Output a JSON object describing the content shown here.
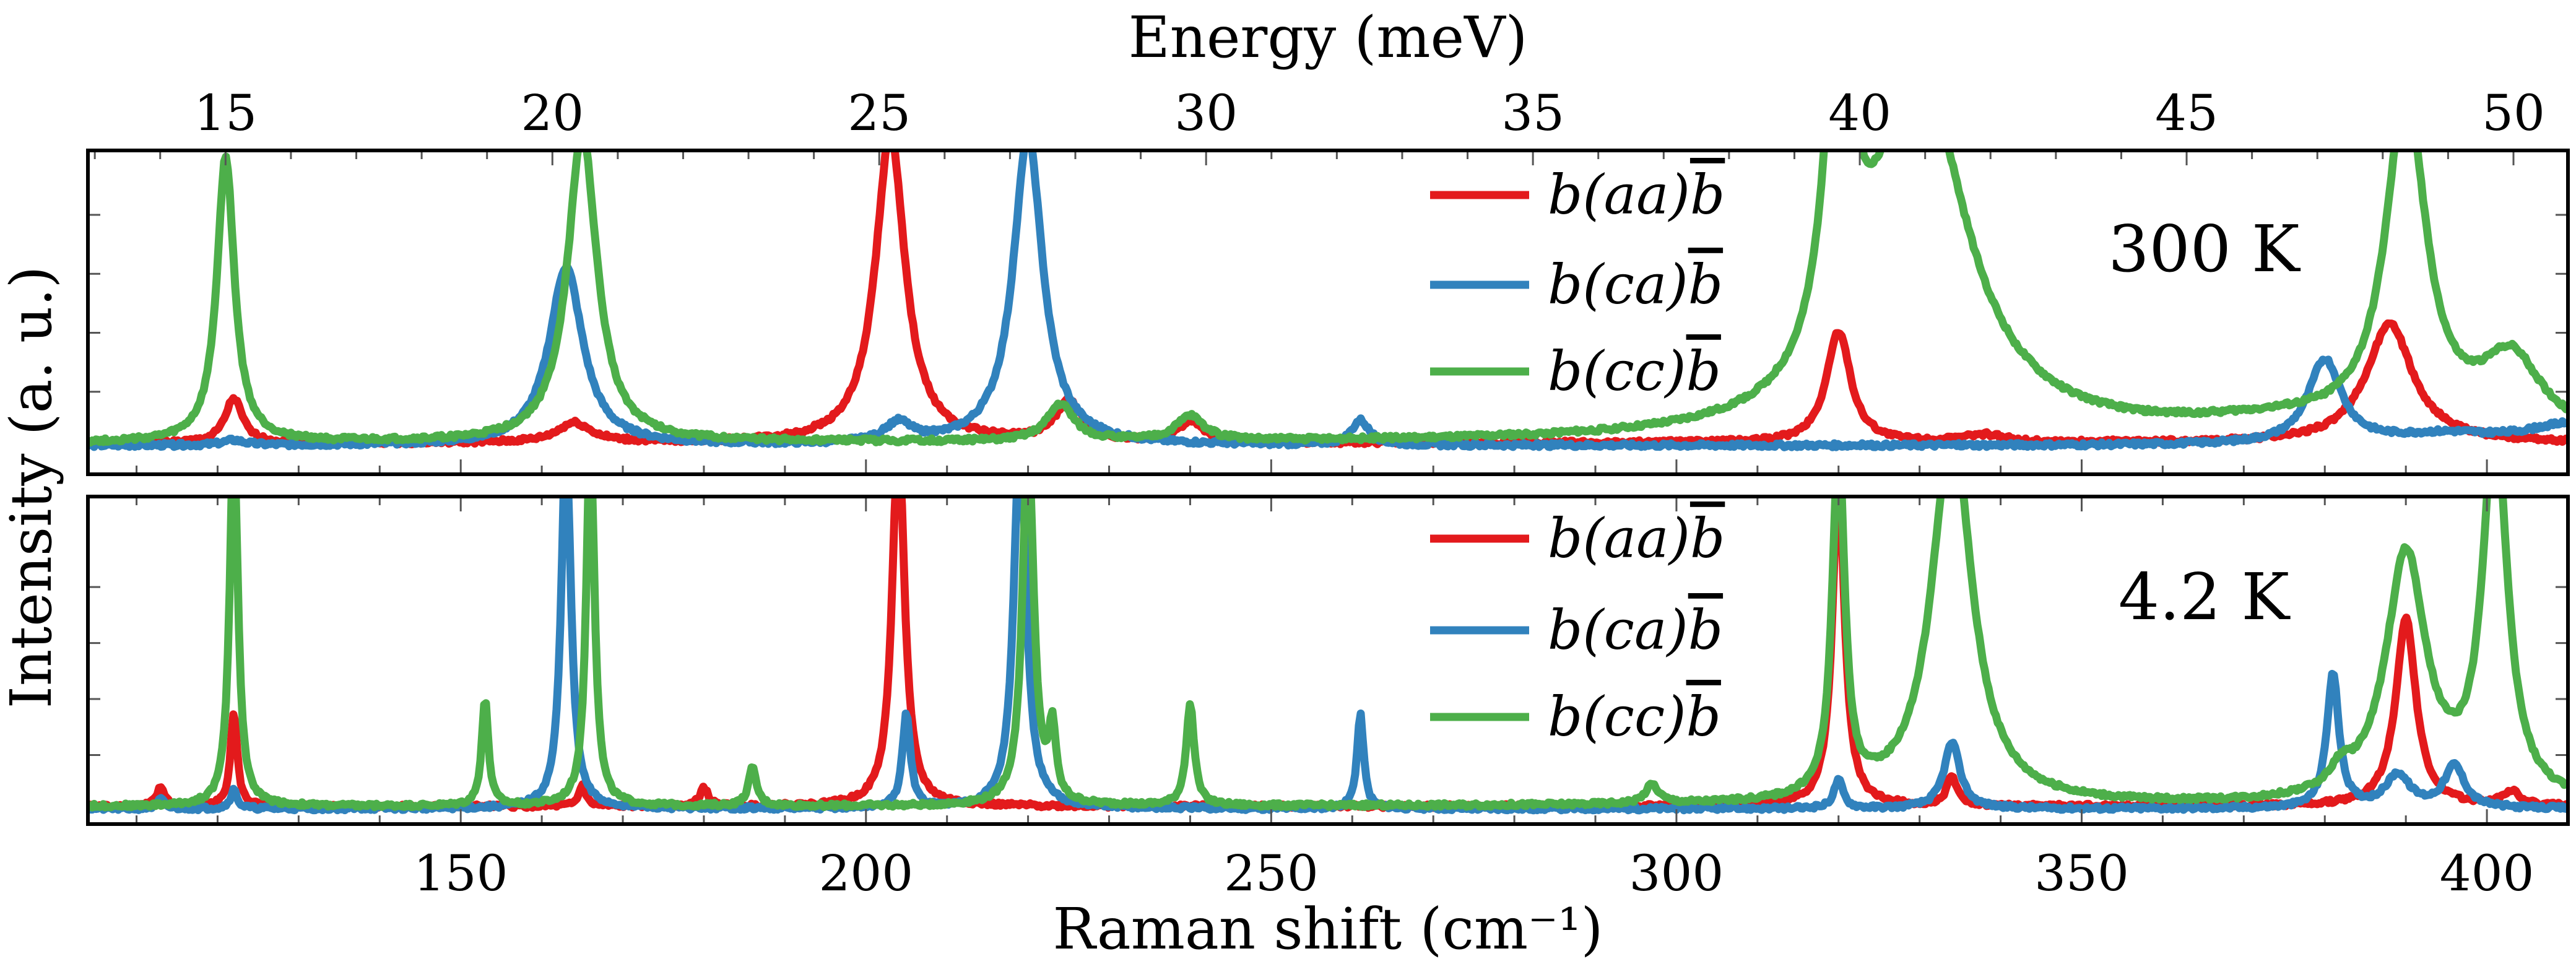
{
  "chart_data": {
    "type": "line",
    "title": "",
    "xlabel": "Raman shift (cm⁻¹)",
    "ylabel": "Intensity (a. u.)",
    "top_xlabel": "Energy (meV)",
    "xlim": [
      104,
      410
    ],
    "energy_ticks": [
      "15",
      "20",
      "25",
      "30",
      "35",
      "40",
      "45",
      "50"
    ],
    "energy_tick_values": [
      15,
      20,
      25,
      30,
      35,
      40,
      45,
      50
    ],
    "bottom_ticks": [
      "150",
      "200",
      "250",
      "300",
      "350",
      "400"
    ],
    "bottom_tick_values": [
      150,
      200,
      250,
      300,
      350,
      400
    ],
    "legend_position": "top-center",
    "colors": {
      "aa": "#e31a1c",
      "ca": "#3182bd",
      "cc": "#4daf4a"
    },
    "panels": [
      {
        "name": "300K",
        "temperature_label": "300 K",
        "ylim": [
          0,
          100
        ],
        "series": [
          {
            "key": "aa",
            "name": "b(aa)b̅",
            "label_main": "b(aa)",
            "label_bar": "b",
            "color": "#e31a1c",
            "baseline": 3,
            "peaks": [
              [
                122,
                18,
                1.3
              ],
              [
                164,
                8,
                2.5
              ],
              [
                203,
                125,
                2.2
              ],
              [
                225,
                16,
                2.0
              ],
              [
                240,
                8,
                2.0
              ],
              [
                320,
                45,
                1.8
              ],
              [
                338,
                3,
                3.0
              ],
              [
                388,
                48,
                3.5
              ]
            ]
          },
          {
            "key": "ca",
            "name": "b(ca)b̅",
            "label_main": "b(ca)",
            "label_bar": "b",
            "color": "#3182bd",
            "baseline": 2,
            "peaks": [
              [
                122,
                2,
                1.5
              ],
              [
                163,
                72,
                2.5
              ],
              [
                204,
                8,
                2.0
              ],
              [
                220,
                125,
                2.2
              ],
              [
                261,
                10,
                1.3
              ],
              [
                380,
                34,
                2.5
              ],
              [
                395,
                4,
                8.0
              ],
              [
                410,
                8,
                6.0
              ]
            ]
          },
          {
            "key": "cc",
            "name": "b(cc)b̅",
            "label_main": "b(cc)",
            "label_bar": "b",
            "color": "#4daf4a",
            "baseline": 3,
            "peaks": [
              [
                121,
                115,
                1.3
              ],
              [
                165,
                125,
                2.2
              ],
              [
                224,
                15,
                2.0
              ],
              [
                240,
                10,
                2.0
              ],
              [
                320,
                145,
                2.0
              ],
              [
                330,
                145,
                7.0
              ],
              [
                374,
                6,
                15.0
              ],
              [
                390,
                135,
                3.0
              ],
              [
                403,
                30,
                4.5
              ]
            ]
          }
        ]
      },
      {
        "name": "4.2K",
        "temperature_label": "4.2 K",
        "ylim": [
          0,
          100
        ],
        "series": [
          {
            "key": "aa",
            "name": "b(aa)b̅",
            "label_main": "b(aa)",
            "label_bar": "b",
            "color": "#e31a1c",
            "baseline": 2,
            "peaks": [
              [
                113,
                8,
                0.6
              ],
              [
                122,
                40,
                0.5
              ],
              [
                165,
                9,
                0.5
              ],
              [
                180,
                8,
                0.6
              ],
              [
                204,
                160,
                0.9
              ],
              [
                320,
                140,
                0.9
              ],
              [
                334,
                12,
                0.8
              ],
              [
                390,
                80,
                1.5
              ],
              [
                403,
                6,
                1.2
              ]
            ]
          },
          {
            "key": "ca",
            "name": "b(ca)b̅",
            "label_main": "b(ca)",
            "label_bar": "b",
            "color": "#3182bd",
            "baseline": 1,
            "peaks": [
              [
                113,
                4,
                0.5
              ],
              [
                122,
                8,
                0.5
              ],
              [
                163,
                160,
                0.7
              ],
              [
                205,
                40,
                0.6
              ],
              [
                219,
                160,
                0.9
              ],
              [
                261,
                40,
                0.5
              ],
              [
                320,
                12,
                0.7
              ],
              [
                334,
                28,
                1.2
              ],
              [
                381,
                57,
                0.9
              ],
              [
                389,
                14,
                1.8
              ],
              [
                396,
                18,
                1.5
              ]
            ]
          },
          {
            "key": "cc",
            "name": "b(cc)b̅",
            "label_main": "b(cc)",
            "label_bar": "b",
            "color": "#4daf4a",
            "baseline": 2,
            "peaks": [
              [
                122,
                160,
                0.6
              ],
              [
                153,
                45,
                0.5
              ],
              [
                166,
                160,
                0.6
              ],
              [
                186,
                16,
                0.6
              ],
              [
                220,
                160,
                0.8
              ],
              [
                223,
                30,
                0.5
              ],
              [
                240,
                43,
                0.6
              ],
              [
                297,
                8,
                1.0
              ],
              [
                320,
                150,
                0.9
              ],
              [
                334,
                160,
                3.0
              ],
              [
                382,
                8,
                1.5
              ],
              [
                390,
                105,
                3.0
              ],
              [
                401,
                160,
                1.8
              ]
            ]
          }
        ]
      }
    ]
  }
}
